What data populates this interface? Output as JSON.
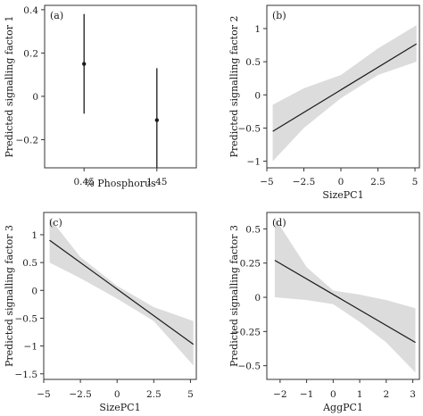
{
  "chart_data": [
    {
      "panel": "(a)",
      "type": "scatter",
      "xlabel": "% Phosphorus",
      "ylabel": "Predicted signalling factor 1",
      "categories": [
        "0.45",
        "1.45"
      ],
      "points": [
        {
          "x": "0.45",
          "y": 0.15,
          "lower": -0.08,
          "upper": 0.38
        },
        {
          "x": "1.45",
          "y": -0.11,
          "lower": -0.33,
          "upper": 0.13
        }
      ],
      "ylim": [
        -0.33,
        0.42
      ],
      "yticks": [
        -0.2,
        0,
        0.2,
        0.4
      ],
      "ytick_labels": [
        "−0.2",
        "0",
        "0.2",
        "0.4"
      ]
    },
    {
      "panel": "(b)",
      "type": "line",
      "xlabel": "SizePC1",
      "ylabel": "Predicted signalling factor 2",
      "line": {
        "x": [
          -4.6,
          5.1
        ],
        "y": [
          -0.55,
          0.77
        ]
      },
      "band": {
        "x": [
          -4.6,
          -2.5,
          0,
          2.5,
          5.1
        ],
        "lower": [
          -1.0,
          -0.5,
          -0.05,
          0.3,
          0.5
        ],
        "upper": [
          -0.15,
          0.1,
          0.3,
          0.7,
          1.05
        ]
      },
      "xlim": [
        -5,
        5.3
      ],
      "ylim": [
        -1.1,
        1.35
      ],
      "xticks": [
        -5,
        -2.5,
        0,
        2.5,
        5
      ],
      "xtick_labels": [
        "−5",
        "−2.5",
        "0",
        "2.5",
        "5"
      ],
      "yticks": [
        -1,
        -0.5,
        0,
        0.5,
        1
      ],
      "ytick_labels": [
        "−1",
        "−0.5",
        "0",
        "0.5",
        "1"
      ]
    },
    {
      "panel": "(c)",
      "type": "line",
      "xlabel": "SizePC1",
      "ylabel": "Predicted signalling factor 3",
      "line": {
        "x": [
          -4.6,
          5.2
        ],
        "y": [
          0.9,
          -0.97
        ]
      },
      "band": {
        "x": [
          -4.6,
          -2.5,
          0,
          2.5,
          5.2
        ],
        "lower": [
          0.5,
          0.22,
          -0.15,
          -0.55,
          -1.35
        ],
        "upper": [
          1.3,
          0.6,
          0.08,
          -0.3,
          -0.55
        ]
      },
      "xlim": [
        -5,
        5.4
      ],
      "ylim": [
        -1.6,
        1.4
      ],
      "xticks": [
        -5,
        -2.5,
        0,
        2.5,
        5
      ],
      "xtick_labels": [
        "−5",
        "−2.5",
        "0",
        "2.5",
        "5"
      ],
      "yticks": [
        -1.5,
        -1,
        -0.5,
        0,
        0.5,
        1
      ],
      "ytick_labels": [
        "−1.5",
        "−1",
        "−0.5",
        "0",
        "0.5",
        "1"
      ]
    },
    {
      "panel": "(d)",
      "type": "line",
      "xlabel": "AggPC1",
      "ylabel": "Predicted signalling factor 3",
      "line": {
        "x": [
          -2.2,
          3.1
        ],
        "y": [
          0.27,
          -0.33
        ]
      },
      "band": {
        "x": [
          -2.2,
          -1,
          0,
          1,
          2,
          3.1
        ],
        "lower": [
          0.0,
          -0.02,
          -0.05,
          -0.18,
          -0.33,
          -0.55
        ],
        "upper": [
          0.58,
          0.22,
          0.05,
          0.02,
          -0.02,
          -0.08
        ]
      },
      "xlim": [
        -2.5,
        3.25
      ],
      "ylim": [
        -0.6,
        0.62
      ],
      "xticks": [
        -2,
        -1,
        0,
        1,
        2,
        3
      ],
      "xtick_labels": [
        "−2",
        "−1",
        "0",
        "1",
        "2",
        "3"
      ],
      "yticks": [
        -0.5,
        -0.25,
        0,
        0.25,
        0.5
      ],
      "ytick_labels": [
        "−0.5",
        "−0.25",
        "0",
        "0.25",
        "0.5"
      ]
    }
  ],
  "colors": {
    "band": "#dcdcdc",
    "line": "#1a1a1a",
    "axis": "#333333"
  }
}
